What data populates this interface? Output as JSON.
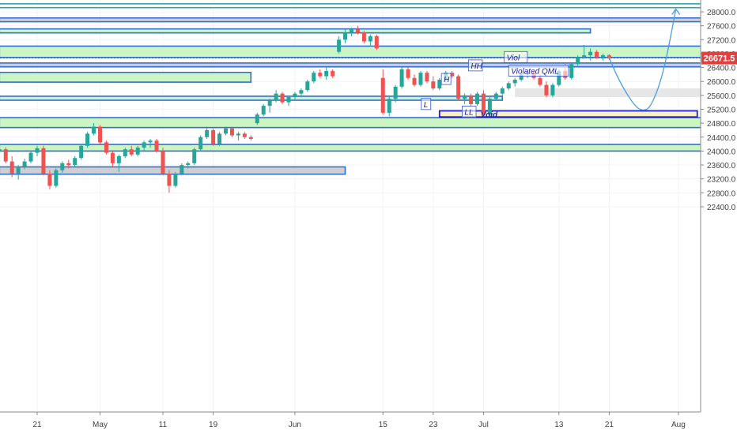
{
  "chart_data": {
    "type": "candlestick",
    "y_axis": {
      "position": "right",
      "range": [
        22300,
        28180
      ],
      "ticks": [
        "28000.0",
        "27600.0",
        "27200.0",
        "26800.0",
        "26400.0",
        "26000.0",
        "25600.0",
        "25200.0",
        "24800.0",
        "24400.0",
        "24000.0",
        "23600.0",
        "23200.0",
        "22800.0",
        "22400.0"
      ]
    },
    "x_axis": {
      "ticks": [
        {
          "label": "21",
          "day": 0
        },
        {
          "label": "May",
          "day": 10
        },
        {
          "label": "11",
          "day": 20
        },
        {
          "label": "19",
          "day": 28
        },
        {
          "label": "Jun",
          "day": 41
        },
        {
          "label": "15",
          "day": 55
        },
        {
          "label": "23",
          "day": 63
        },
        {
          "label": "Jul",
          "day": 71
        },
        {
          "label": "13",
          "day": 83
        },
        {
          "label": "21",
          "day": 91
        },
        {
          "label": "Aug",
          "day": 102
        }
      ]
    },
    "last_price": "26671.5",
    "last_price_value": 26671.5,
    "colors": {
      "up": "#26a69a",
      "down": "#ef5350",
      "green_zone_fill": "#ccf5c4",
      "gray_zone_fill": "#cfcfcf",
      "zone_border": "#2f6fd0",
      "void_fill": "#fdefc3",
      "void_border": "#1a22c8",
      "projection": "#4a9fe0",
      "last_price_line": "#e04040"
    },
    "zones": [
      {
        "type": "green",
        "from_day": -6,
        "to_day": 110,
        "low": 28120,
        "high": 28230,
        "border": "teal"
      },
      {
        "type": "gray",
        "from_day": -6,
        "to_day": 108,
        "low": 27715,
        "high": 27825
      },
      {
        "type": "green",
        "from_day": -6,
        "to_day": 88,
        "low": 27395,
        "high": 27510
      },
      {
        "type": "green",
        "from_day": -6,
        "to_day": 108,
        "low": 26690,
        "high": 27015
      },
      {
        "type": "gray",
        "from_day": -6,
        "to_day": 108,
        "low": 26420,
        "high": 26530
      },
      {
        "type": "green",
        "from_day": -6,
        "to_day": 34,
        "low": 25980,
        "high": 26260
      },
      {
        "type": "gray",
        "from_day": 76,
        "to_day": 108,
        "low": 25550,
        "high": 25800,
        "light": true
      },
      {
        "type": "green",
        "from_day": -6,
        "to_day": 74,
        "low": 25460,
        "high": 25575
      },
      {
        "type": "green",
        "from_day": -6,
        "to_day": 108,
        "low": 24675,
        "high": 24960
      },
      {
        "type": "green",
        "from_day": -6,
        "to_day": 108,
        "low": 24000,
        "high": 24190
      },
      {
        "type": "gray",
        "from_day": -6,
        "to_day": 49,
        "low": 23335,
        "high": 23545
      }
    ],
    "void_zone": {
      "from_day": 64,
      "to_day": 105,
      "low": 24980,
      "high": 25155,
      "label": "Void"
    },
    "labels": [
      {
        "text": "Viol",
        "day": 74.3,
        "price": 26610,
        "style": "box"
      },
      {
        "text": "HH",
        "day": 68.6,
        "price": 26370,
        "style": "box"
      },
      {
        "text": "Violated QML",
        "day": 75,
        "price": 26220,
        "style": "box"
      },
      {
        "text": "H",
        "day": 64.3,
        "price": 25980,
        "style": "box"
      },
      {
        "text": "L",
        "day": 61.1,
        "price": 25260,
        "style": "box"
      },
      {
        "text": "LL",
        "day": 67.6,
        "price": 25040,
        "style": "box"
      }
    ],
    "projection": {
      "points": [
        [
          90.8,
          26760
        ],
        [
          92.6,
          26000
        ],
        [
          95,
          25300
        ],
        [
          96.3,
          25150
        ],
        [
          97.6,
          25250
        ],
        [
          99.6,
          26200
        ],
        [
          101.6,
          28080
        ]
      ]
    },
    "candles": [
      [
        -6,
        23980,
        24100,
        23880,
        24050
      ],
      [
        -5,
        24050,
        24110,
        23650,
        23700
      ],
      [
        -4,
        23700,
        23850,
        23250,
        23350
      ],
      [
        -3,
        23350,
        23600,
        23180,
        23550
      ],
      [
        -2,
        23550,
        23780,
        23480,
        23700
      ],
      [
        -1,
        23700,
        24000,
        23650,
        23950
      ],
      [
        0,
        23950,
        24150,
        23850,
        24080
      ],
      [
        1,
        24080,
        24150,
        23300,
        23350
      ],
      [
        2,
        23350,
        23450,
        22900,
        23000
      ],
      [
        3,
        23000,
        23500,
        22950,
        23450
      ],
      [
        4,
        23450,
        23700,
        23380,
        23650
      ],
      [
        5,
        23650,
        23750,
        23500,
        23600
      ],
      [
        6,
        23600,
        23850,
        23550,
        23800
      ],
      [
        7,
        23800,
        24200,
        23750,
        24150
      ],
      [
        8,
        24150,
        24550,
        24100,
        24500
      ],
      [
        9,
        24500,
        24800,
        24450,
        24700
      ],
      [
        10,
        24700,
        24750,
        24200,
        24250
      ],
      [
        11,
        24250,
        24300,
        23900,
        23950
      ],
      [
        12,
        23950,
        24000,
        23550,
        23650
      ],
      [
        13,
        23650,
        23900,
        23400,
        23850
      ],
      [
        14,
        23850,
        24100,
        23800,
        24050
      ],
      [
        15,
        24050,
        24150,
        23850,
        23900
      ],
      [
        16,
        23900,
        24150,
        23850,
        24100
      ],
      [
        17,
        24100,
        24300,
        24000,
        24250
      ],
      [
        18,
        24250,
        24350,
        24100,
        24300
      ],
      [
        19,
        24300,
        24350,
        23950,
        24000
      ],
      [
        20,
        24000,
        24100,
        23300,
        23350
      ],
      [
        21,
        23350,
        23450,
        22800,
        23000
      ],
      [
        22,
        23000,
        23400,
        22950,
        23350
      ],
      [
        23,
        23350,
        23650,
        23300,
        23600
      ],
      [
        24,
        23600,
        23700,
        23500,
        23650
      ],
      [
        25,
        23650,
        24100,
        23600,
        24050
      ],
      [
        26,
        24050,
        24450,
        24000,
        24400
      ],
      [
        27,
        24400,
        24700,
        24350,
        24600
      ],
      [
        28,
        24600,
        24650,
        24150,
        24200
      ],
      [
        29,
        24200,
        24550,
        24150,
        24500
      ],
      [
        30,
        24500,
        24700,
        24450,
        24650
      ],
      [
        31,
        24650,
        24700,
        24400,
        24450
      ],
      [
        32,
        24450,
        24550,
        24300,
        24500
      ],
      [
        33,
        24500,
        24550,
        24350,
        24400
      ],
      [
        34,
        24400,
        24450,
        24300,
        24350
      ],
      [
        35,
        24800,
        25100,
        24750,
        25050
      ],
      [
        36,
        25050,
        25350,
        25000,
        25300
      ],
      [
        37,
        25300,
        25500,
        25100,
        25450
      ],
      [
        38,
        25450,
        25750,
        25400,
        25650
      ],
      [
        39,
        25650,
        25700,
        25350,
        25400
      ],
      [
        40,
        25400,
        25600,
        25300,
        25550
      ],
      [
        41,
        25550,
        25700,
        25450,
        25650
      ],
      [
        42,
        25650,
        25800,
        25550,
        25750
      ],
      [
        43,
        25750,
        26050,
        25700,
        26000
      ],
      [
        44,
        26000,
        26300,
        25950,
        26250
      ],
      [
        45,
        26250,
        26350,
        26100,
        26150
      ],
      [
        46,
        26150,
        26400,
        26050,
        26300
      ],
      [
        47,
        26300,
        26350,
        26100,
        26150
      ],
      [
        48,
        26850,
        27300,
        26800,
        27200
      ],
      [
        49,
        27200,
        27500,
        27100,
        27400
      ],
      [
        50,
        27400,
        27550,
        27300,
        27500
      ],
      [
        51,
        27500,
        27600,
        27350,
        27400
      ],
      [
        52,
        27400,
        27450,
        27100,
        27150
      ],
      [
        53,
        27150,
        27350,
        27000,
        27300
      ],
      [
        54,
        27300,
        27350,
        26900,
        26950
      ],
      [
        55,
        26100,
        26350,
        25050,
        25100
      ],
      [
        56,
        25100,
        25550,
        25000,
        25500
      ],
      [
        57,
        25500,
        25900,
        25400,
        25850
      ],
      [
        58,
        25850,
        26400,
        25800,
        26350
      ],
      [
        59,
        26350,
        26400,
        26050,
        26100
      ],
      [
        60,
        26100,
        26200,
        25850,
        25900
      ],
      [
        61,
        25900,
        26300,
        25850,
        26250
      ],
      [
        62,
        26250,
        26300,
        25950,
        26000
      ],
      [
        63,
        26000,
        26150,
        25750,
        25800
      ],
      [
        64,
        25800,
        26100,
        25750,
        26050
      ],
      [
        65,
        26050,
        26300,
        25950,
        26250
      ],
      [
        66,
        26250,
        26300,
        26100,
        26150
      ],
      [
        67,
        26150,
        26200,
        25450,
        25500
      ],
      [
        68,
        25500,
        25650,
        25350,
        25600
      ],
      [
        69,
        25600,
        25650,
        25300,
        25350
      ],
      [
        70,
        25350,
        25700,
        25300,
        25650
      ],
      [
        71,
        25650,
        25750,
        24980,
        25050
      ],
      [
        72,
        25050,
        25550,
        25000,
        25500
      ],
      [
        73,
        25500,
        25700,
        25450,
        25650
      ],
      [
        74,
        25650,
        25850,
        25600,
        25800
      ],
      [
        75,
        25800,
        26000,
        25750,
        25950
      ],
      [
        76,
        25950,
        26100,
        25850,
        26050
      ],
      [
        77,
        26050,
        26250,
        26000,
        26200
      ],
      [
        78,
        26200,
        26300,
        26100,
        26250
      ],
      [
        79,
        26250,
        26300,
        26050,
        26100
      ],
      [
        80,
        26100,
        26200,
        25850,
        25900
      ],
      [
        81,
        25900,
        26000,
        25550,
        25600
      ],
      [
        82,
        25600,
        25950,
        25550,
        25900
      ],
      [
        83,
        25900,
        26350,
        25850,
        26300
      ],
      [
        84,
        26300,
        26500,
        26050,
        26100
      ],
      [
        85,
        26100,
        26550,
        26050,
        26500
      ],
      [
        86,
        26500,
        26750,
        26450,
        26700
      ],
      [
        87,
        26700,
        27050,
        26650,
        26750
      ],
      [
        88,
        26750,
        26950,
        26600,
        26850
      ],
      [
        89,
        26850,
        26900,
        26650,
        26700
      ],
      [
        90,
        26700,
        26800,
        26600,
        26750
      ],
      [
        91,
        26750,
        26780,
        26620,
        26672
      ]
    ]
  }
}
